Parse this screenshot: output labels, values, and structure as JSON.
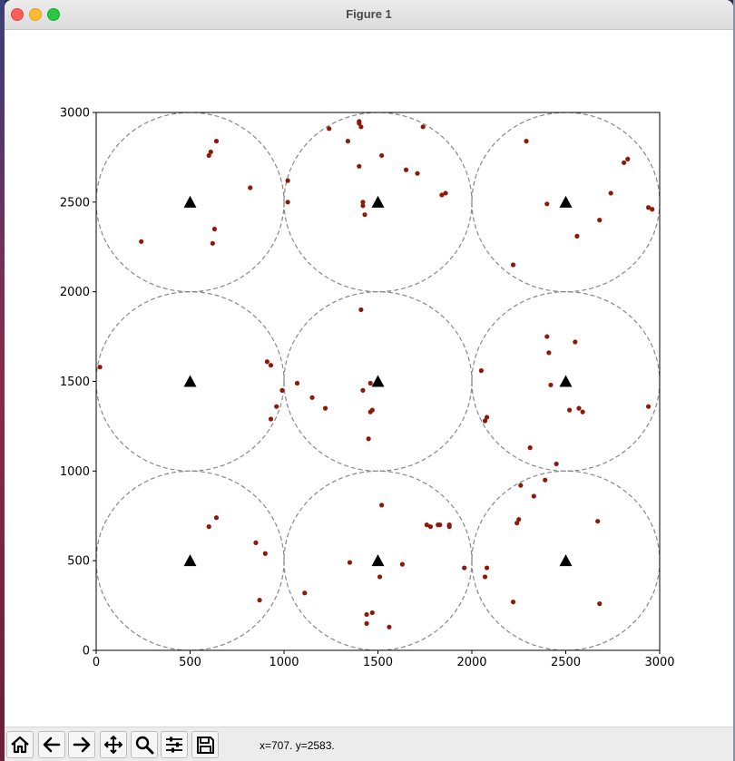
{
  "window": {
    "title": "Figure 1"
  },
  "toolbar": {
    "coords": "x=707. y=2583.",
    "buttons": [
      {
        "name": "home-button",
        "icon": "home-icon"
      },
      {
        "name": "back-button",
        "icon": "arrow-left-icon"
      },
      {
        "name": "forward-button",
        "icon": "arrow-right-icon"
      },
      {
        "name": "pan-button",
        "icon": "move-icon"
      },
      {
        "name": "zoom-button",
        "icon": "magnifier-icon"
      },
      {
        "name": "configure-subplots-button",
        "icon": "sliders-icon"
      },
      {
        "name": "save-button",
        "icon": "floppy-disk-icon"
      }
    ]
  },
  "colors": {
    "point": "#8b1a0a",
    "circle": "#888888",
    "tower": "#000000"
  },
  "chart_data": {
    "type": "scatter",
    "xlim": [
      0,
      3000
    ],
    "ylim": [
      0,
      3000
    ],
    "xticks": [
      "0",
      "500",
      "1000",
      "1500",
      "2000",
      "2500",
      "3000"
    ],
    "yticks": [
      "0",
      "500",
      "1000",
      "1500",
      "2000",
      "2500",
      "3000"
    ],
    "grid": false,
    "centers": [
      [
        500,
        2500
      ],
      [
        1500,
        2500
      ],
      [
        2500,
        2500
      ],
      [
        500,
        1500
      ],
      [
        1500,
        1500
      ],
      [
        2500,
        1500
      ],
      [
        500,
        500
      ],
      [
        1500,
        500
      ],
      [
        2500,
        500
      ]
    ],
    "circle_radius": 500,
    "points": [
      [
        640,
        2840
      ],
      [
        610,
        2780
      ],
      [
        600,
        2760
      ],
      [
        820,
        2580
      ],
      [
        1020,
        2620
      ],
      [
        1020,
        2500
      ],
      [
        630,
        2350
      ],
      [
        240,
        2280
      ],
      [
        620,
        2270
      ],
      [
        1240,
        2910
      ],
      [
        1400,
        2950
      ],
      [
        1400,
        2940
      ],
      [
        1410,
        2920
      ],
      [
        1740,
        2920
      ],
      [
        1340,
        2840
      ],
      [
        1520,
        2760
      ],
      [
        1400,
        2700
      ],
      [
        1650,
        2680
      ],
      [
        1710,
        2660
      ],
      [
        1860,
        2550
      ],
      [
        1840,
        2540
      ],
      [
        1420,
        2500
      ],
      [
        1420,
        2480
      ],
      [
        1430,
        2430
      ],
      [
        2290,
        2840
      ],
      [
        2830,
        2740
      ],
      [
        2810,
        2720
      ],
      [
        2740,
        2550
      ],
      [
        2400,
        2490
      ],
      [
        2940,
        2470
      ],
      [
        2960,
        2460
      ],
      [
        2680,
        2400
      ],
      [
        2560,
        2310
      ],
      [
        2220,
        2150
      ],
      [
        20,
        1580
      ],
      [
        910,
        1610
      ],
      [
        930,
        1590
      ],
      [
        990,
        1450
      ],
      [
        960,
        1360
      ],
      [
        930,
        1290
      ],
      [
        1410,
        1900
      ],
      [
        1460,
        1490
      ],
      [
        1070,
        1490
      ],
      [
        1420,
        1450
      ],
      [
        1150,
        1410
      ],
      [
        1220,
        1350
      ],
      [
        1470,
        1340
      ],
      [
        1460,
        1330
      ],
      [
        1450,
        1180
      ],
      [
        2400,
        1750
      ],
      [
        2550,
        1720
      ],
      [
        2410,
        1660
      ],
      [
        2050,
        1560
      ],
      [
        2420,
        1480
      ],
      [
        2520,
        1340
      ],
      [
        2570,
        1350
      ],
      [
        2590,
        1330
      ],
      [
        2940,
        1360
      ],
      [
        2080,
        1300
      ],
      [
        2070,
        1280
      ],
      [
        2310,
        1130
      ],
      [
        2450,
        1040
      ],
      [
        640,
        740
      ],
      [
        600,
        690
      ],
      [
        850,
        600
      ],
      [
        900,
        540
      ],
      [
        870,
        280
      ],
      [
        1520,
        810
      ],
      [
        1760,
        700
      ],
      [
        1780,
        690
      ],
      [
        1820,
        700
      ],
      [
        1830,
        700
      ],
      [
        1880,
        700
      ],
      [
        1880,
        690
      ],
      [
        1350,
        490
      ],
      [
        1630,
        480
      ],
      [
        1960,
        460
      ],
      [
        1510,
        410
      ],
      [
        1110,
        320
      ],
      [
        1470,
        210
      ],
      [
        1440,
        200
      ],
      [
        1440,
        150
      ],
      [
        1560,
        130
      ],
      [
        2390,
        950
      ],
      [
        2260,
        920
      ],
      [
        2330,
        860
      ],
      [
        2250,
        730
      ],
      [
        2240,
        710
      ],
      [
        2670,
        720
      ],
      [
        2080,
        460
      ],
      [
        2070,
        410
      ],
      [
        2220,
        270
      ],
      [
        2680,
        260
      ]
    ]
  }
}
